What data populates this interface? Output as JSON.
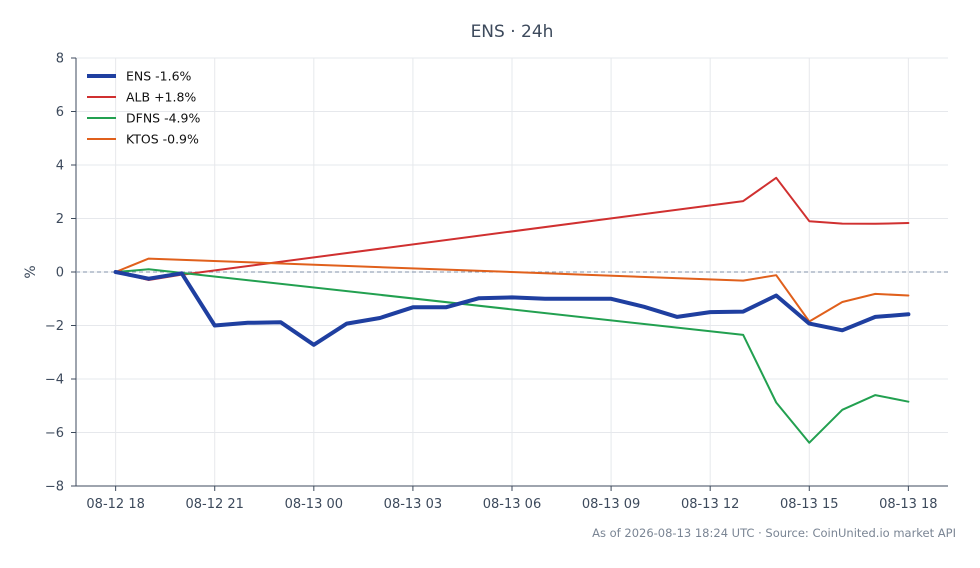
{
  "chart_data": {
    "type": "line",
    "title": "ENS · 24h",
    "xlabel": "",
    "ylabel": "%",
    "ylim": [
      -8,
      8
    ],
    "yticks": [
      -8,
      -6,
      -4,
      -2,
      0,
      2,
      4,
      6,
      8
    ],
    "x_tick_labels": [
      "08-12 18",
      "08-12 21",
      "08-13 00",
      "08-13 03",
      "08-13 06",
      "08-13 09",
      "08-13 12",
      "08-13 15",
      "08-13 18"
    ],
    "x_tick_hours": [
      0,
      3,
      6,
      9,
      12,
      15,
      18,
      21,
      24
    ],
    "xlim_hours": [
      -1.2,
      25.2
    ],
    "grid": true,
    "zero_line": true,
    "legend_position": "top-left",
    "series": [
      {
        "name": "ENS -1.6%",
        "color": "#1f3fa0",
        "width": 4,
        "x_hours": [
          0,
          1,
          2,
          3,
          4,
          5,
          6,
          7,
          8,
          9,
          10,
          11,
          12,
          13,
          14,
          15,
          16,
          17,
          18,
          19,
          20,
          21,
          22,
          23,
          24
        ],
        "values": [
          0,
          -0.25,
          -0.05,
          -2.0,
          -1.9,
          -1.88,
          -2.72,
          -1.93,
          -1.72,
          -1.32,
          -1.32,
          -0.98,
          -0.95,
          -1.0,
          -1.0,
          -1.0,
          -1.3,
          -1.68,
          -1.5,
          -1.48,
          -0.88,
          -1.93,
          -2.18,
          -1.68,
          -1.58
        ]
      },
      {
        "name": "ALB +1.8%",
        "color": "#d03030",
        "width": 2,
        "x_hours": [
          0,
          1,
          2,
          19,
          20,
          21,
          22,
          23,
          24
        ],
        "values": [
          0,
          -0.3,
          -0.1,
          2.65,
          3.52,
          1.9,
          1.81,
          1.8,
          1.83
        ]
      },
      {
        "name": "DFNS -4.9%",
        "color": "#22a050",
        "width": 2,
        "x_hours": [
          0,
          1,
          19,
          20,
          21,
          22,
          23,
          24
        ],
        "values": [
          0,
          0.1,
          -2.35,
          -4.88,
          -6.38,
          -5.15,
          -4.6,
          -4.85
        ]
      },
      {
        "name": "KTOS -0.9%",
        "color": "#e0601c",
        "width": 2,
        "x_hours": [
          0,
          1,
          19,
          20,
          21,
          22,
          23,
          24
        ],
        "values": [
          0,
          0.5,
          -0.32,
          -0.12,
          -1.85,
          -1.12,
          -0.82,
          -0.88
        ]
      }
    ],
    "footer": "As of 2026-08-13 18:24 UTC · Source: CoinUnited.io market API"
  }
}
